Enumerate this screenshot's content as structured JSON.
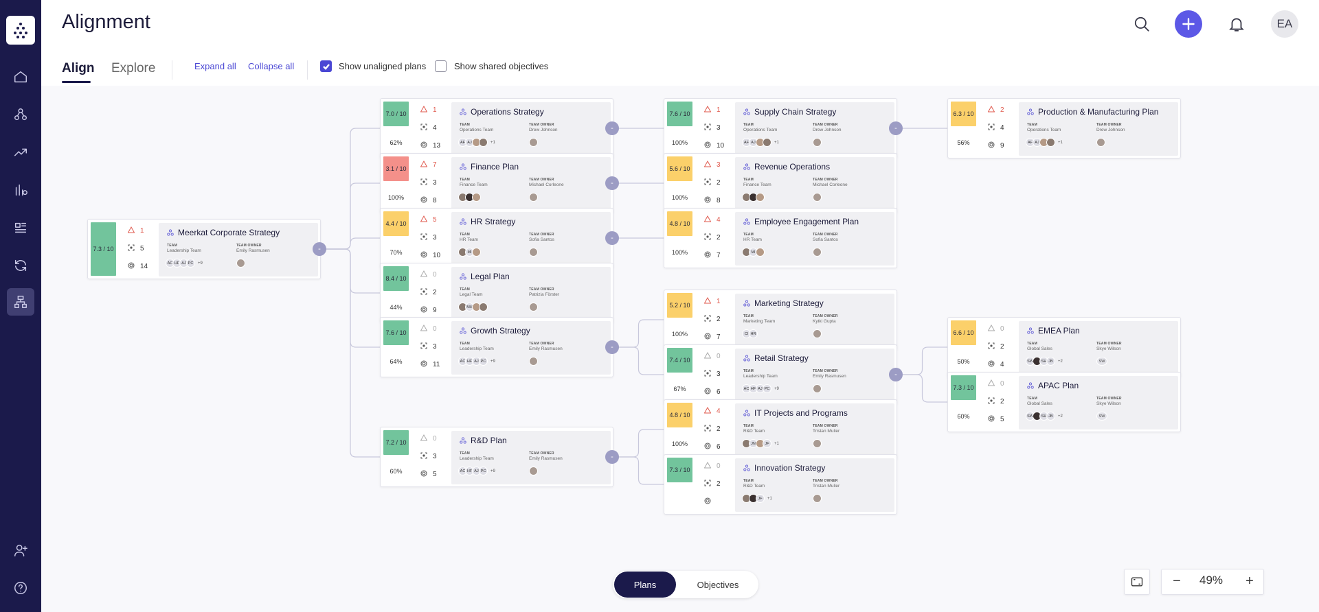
{
  "app": {
    "title": "Alignment",
    "avatar_initials": "EA"
  },
  "tabs": [
    {
      "label": "Align"
    },
    {
      "label": "Explore"
    }
  ],
  "toolbar": {
    "expand_all": "Expand all",
    "collapse_all": "Collapse all",
    "show_unaligned": "Show unaligned plans",
    "show_unaligned_checked": true,
    "show_shared": "Show shared objectives",
    "show_shared_checked": false
  },
  "labels": {
    "team": "TEAM",
    "owner": "TEAM OWNER",
    "collapse": "-"
  },
  "plans": [
    {
      "id": "root",
      "name": "Meerkat Corporate Strategy",
      "score": "7.3 / 10",
      "color": "green",
      "risks": "1",
      "objectives": "5",
      "keyresults": "14",
      "progress": "",
      "team": "Leadership Team",
      "owner": "Emily Rasmusen",
      "members": [
        "AC",
        "HF",
        "AJ",
        "PC"
      ],
      "more": "+9"
    },
    {
      "id": "ops",
      "name": "Operations Strategy",
      "score": "7.0 / 10",
      "color": "green",
      "risks": "1",
      "objectives": "4",
      "keyresults": "13",
      "progress": "62%",
      "team": "Operations Team",
      "owner": "Drew Johnson",
      "members": [
        "AF",
        "AJ",
        "",
        ""
      ],
      "more": "+1"
    },
    {
      "id": "fin",
      "name": "Finance Plan",
      "score": "3.1 / 10",
      "color": "red",
      "risks": "7",
      "objectives": "3",
      "keyresults": "8",
      "progress": "100%",
      "team": "Finance Team",
      "owner": "Michael Corleone",
      "members": [
        "",
        "",
        ""
      ],
      "more": ""
    },
    {
      "id": "hr",
      "name": "HR Strategy",
      "score": "4.4 / 10",
      "color": "yellow",
      "risks": "5",
      "objectives": "3",
      "keyresults": "10",
      "progress": "70%",
      "team": "HR Team",
      "owner": "Sofia Santos",
      "members": [
        "",
        "MI",
        ""
      ],
      "more": ""
    },
    {
      "id": "legal",
      "name": "Legal Plan",
      "score": "8.4 / 10",
      "color": "green",
      "risks": "0",
      "objectives": "2",
      "keyresults": "9",
      "progress": "44%",
      "team": "Legal Team",
      "owner": "Patrizia Förster",
      "members": [
        "",
        "MH",
        "",
        ""
      ],
      "more": ""
    },
    {
      "id": "growth",
      "name": "Growth Strategy",
      "score": "7.6 / 10",
      "color": "green",
      "risks": "0",
      "objectives": "3",
      "keyresults": "11",
      "progress": "64%",
      "team": "Leadership Team",
      "owner": "Emily Rasmusen",
      "members": [
        "AC",
        "HF",
        "AJ",
        "PC"
      ],
      "more": "+9"
    },
    {
      "id": "rd",
      "name": "R&D Plan",
      "score": "7.2 / 10",
      "color": "green",
      "risks": "0",
      "objectives": "3",
      "keyresults": "5",
      "progress": "60%",
      "team": "Leadership Team",
      "owner": "Emily Rasmusen",
      "members": [
        "AC",
        "HF",
        "AJ",
        "PC"
      ],
      "more": "+9"
    },
    {
      "id": "supply",
      "name": "Supply Chain Strategy",
      "score": "7.6 / 10",
      "color": "green",
      "risks": "1",
      "objectives": "3",
      "keyresults": "10",
      "progress": "100%",
      "team": "Operations Team",
      "owner": "Drew Johnson",
      "members": [
        "AF",
        "AJ",
        "",
        ""
      ],
      "more": "+1"
    },
    {
      "id": "rev",
      "name": "Revenue Operations",
      "score": "5.6 / 10",
      "color": "yellow",
      "risks": "3",
      "objectives": "2",
      "keyresults": "8",
      "progress": "100%",
      "team": "Finance Team",
      "owner": "Michael Corleone",
      "members": [
        "",
        "",
        ""
      ],
      "more": ""
    },
    {
      "id": "emp",
      "name": "Employee Engagement Plan",
      "score": "4.8 / 10",
      "color": "yellow",
      "risks": "4",
      "objectives": "2",
      "keyresults": "7",
      "progress": "100%",
      "team": "HR Team",
      "owner": "Sofia Santos",
      "members": [
        "",
        "MI",
        ""
      ],
      "more": ""
    },
    {
      "id": "mkt",
      "name": "Marketing Strategy",
      "score": "5.2 / 10",
      "color": "yellow",
      "risks": "1",
      "objectives": "2",
      "keyresults": "7",
      "progress": "100%",
      "team": "Marketing Team",
      "owner": "Kytki Gupta",
      "members": [
        "CI",
        "HR"
      ],
      "more": ""
    },
    {
      "id": "retail",
      "name": "Retail Strategy",
      "score": "7.4 / 10",
      "color": "green",
      "risks": "0",
      "objectives": "3",
      "keyresults": "6",
      "progress": "67%",
      "team": "Leadership Team",
      "owner": "Emily Rasmusen",
      "members": [
        "AC",
        "HF",
        "AJ",
        "PC"
      ],
      "more": "+9"
    },
    {
      "id": "it",
      "name": "IT Projects and Programs",
      "score": "4.8 / 10",
      "color": "yellow",
      "risks": "4",
      "objectives": "2",
      "keyresults": "6",
      "progress": "100%",
      "team": "R&D Team",
      "owner": "Tristan Muller",
      "members": [
        "",
        "JN",
        "",
        "JF"
      ],
      "more": "+1"
    },
    {
      "id": "innov",
      "name": "Innovation Strategy",
      "score": "7.3 / 10",
      "color": "green",
      "risks": "0",
      "objectives": "2",
      "keyresults": "",
      "progress": "",
      "team": "R&D Team",
      "owner": "Tristan Muller",
      "members": [
        "",
        "",
        "JF"
      ],
      "more": "+1"
    },
    {
      "id": "prod",
      "name": "Production & Manufacturing Plan",
      "score": "6.3 / 10",
      "color": "yellow",
      "risks": "2",
      "objectives": "4",
      "keyresults": "9",
      "progress": "56%",
      "team": "Operations Team",
      "owner": "Drew Johnson",
      "members": [
        "AF",
        "AJ",
        "",
        ""
      ],
      "more": "+1"
    },
    {
      "id": "emea",
      "name": "EMEA Plan",
      "score": "6.6 / 10",
      "color": "yellow",
      "risks": "0",
      "objectives": "2",
      "keyresults": "4",
      "progress": "50%",
      "team": "Global Sales",
      "owner": "Skye Wilson",
      "members": [
        "SW",
        "",
        "SH",
        "JB"
      ],
      "more": "+2",
      "owner_initials": "SW"
    },
    {
      "id": "apac",
      "name": "APAC Plan",
      "score": "7.3 / 10",
      "color": "green",
      "risks": "0",
      "objectives": "2",
      "keyresults": "5",
      "progress": "60%",
      "team": "Global Sales",
      "owner": "Skye Wilson",
      "members": [
        "SW",
        "",
        "SH",
        "JB"
      ],
      "more": "+2",
      "owner_initials": "SW"
    }
  ],
  "bottom": {
    "plans": "Plans",
    "objectives": "Objectives"
  },
  "zoom": {
    "value": "49%"
  }
}
